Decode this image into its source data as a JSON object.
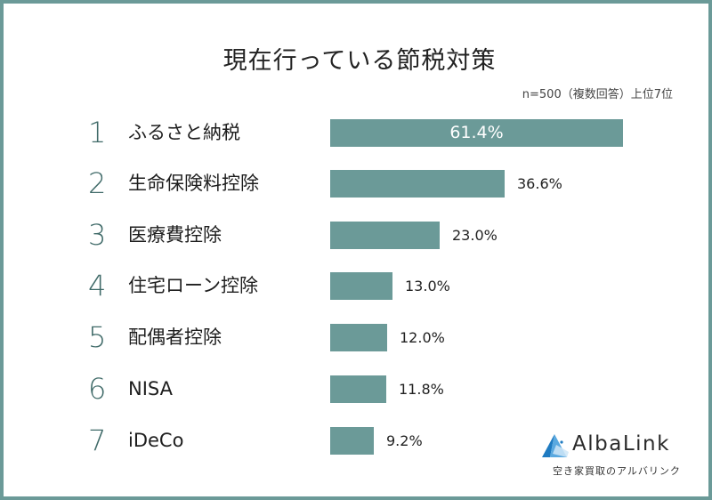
{
  "title": "現在行っている節税対策",
  "note": "n=500（複数回答）上位7位",
  "colors": {
    "bar": "#6b9a98",
    "border": "#6b9a98",
    "rank": "#3f6a68",
    "logo_blue": "#1f7bc1"
  },
  "rows": [
    {
      "rank": "1",
      "label": "ふるさと納税",
      "value": "61.4%"
    },
    {
      "rank": "2",
      "label": "生命保険料控除",
      "value": "36.6%"
    },
    {
      "rank": "3",
      "label": "医療費控除",
      "value": "23.0%"
    },
    {
      "rank": "4",
      "label": "住宅ローン控除",
      "value": "13.0%"
    },
    {
      "rank": "5",
      "label": "配偶者控除",
      "value": "12.0%"
    },
    {
      "rank": "6",
      "label": "NISA",
      "value": "11.8%"
    },
    {
      "rank": "7",
      "label": "iDeCo",
      "value": "9.2%"
    }
  ],
  "logo": {
    "name": "AlbaLink",
    "tagline": "空き家買取のアルバリンク"
  },
  "chart_data": {
    "type": "bar",
    "orientation": "horizontal",
    "title": "現在行っている節税対策",
    "subtitle": "n=500（複数回答）上位7位",
    "categories": [
      "ふるさと納税",
      "生命保険料控除",
      "医療費控除",
      "住宅ローン控除",
      "配偶者控除",
      "NISA",
      "iDeCo"
    ],
    "values": [
      61.4,
      36.6,
      23.0,
      13.0,
      12.0,
      11.8,
      9.2
    ],
    "unit": "%",
    "xlabel": "",
    "ylabel": "",
    "grid": false,
    "legend": null,
    "data_labels": true
  }
}
